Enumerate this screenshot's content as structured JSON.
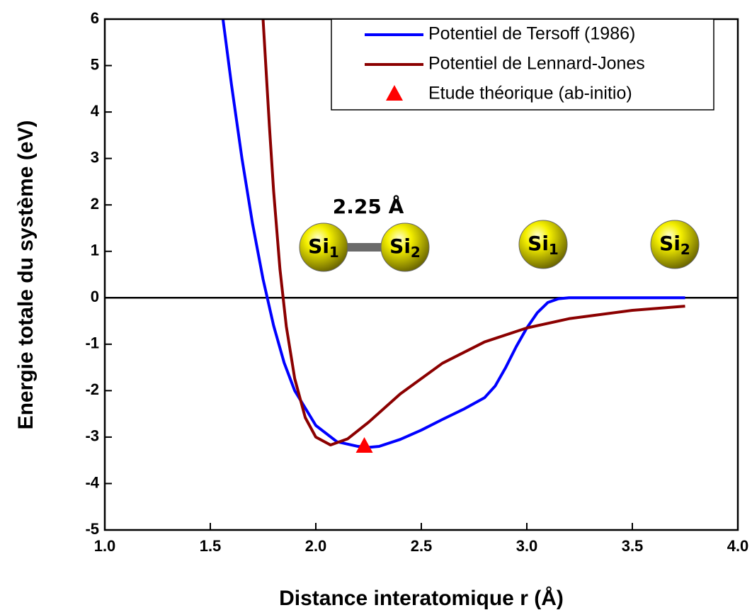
{
  "chart_data": {
    "type": "line",
    "xlabel": "Distance interatomique r (Å)",
    "ylabel": "Energie totale du système (eV)",
    "xlim": [
      1.0,
      4.0
    ],
    "ylim": [
      -5,
      6
    ],
    "xticks": [
      {
        "value": 1.0,
        "label": "1.0"
      },
      {
        "value": 1.5,
        "label": "1.5"
      },
      {
        "value": 2.0,
        "label": "2.0"
      },
      {
        "value": 2.5,
        "label": "2.5"
      },
      {
        "value": 3.0,
        "label": "3.0"
      },
      {
        "value": 3.5,
        "label": "3.5"
      },
      {
        "value": 4.0,
        "label": "4.0"
      }
    ],
    "yticks": [
      -5,
      -4,
      -3,
      -2,
      -1,
      0,
      1,
      2,
      3,
      4,
      5,
      6
    ],
    "legend": "upper right",
    "series": [
      {
        "name": "Potentiel de Tersoff (1986)",
        "type": "line",
        "color": "#0000ff",
        "x": [
          1.56,
          1.6,
          1.65,
          1.7,
          1.75,
          1.8,
          1.85,
          1.9,
          2.0,
          2.1,
          2.2,
          2.25,
          2.3,
          2.4,
          2.5,
          2.6,
          2.7,
          2.8,
          2.85,
          2.9,
          2.95,
          3.0,
          3.05,
          3.1,
          3.15,
          3.2,
          3.3,
          3.5,
          3.75
        ],
        "values": [
          6,
          4.6,
          3.0,
          1.6,
          0.4,
          -0.6,
          -1.4,
          -2.0,
          -2.75,
          -3.1,
          -3.2,
          -3.22,
          -3.2,
          -3.05,
          -2.85,
          -2.62,
          -2.4,
          -2.15,
          -1.9,
          -1.5,
          -1.05,
          -0.65,
          -0.32,
          -0.1,
          -0.02,
          0,
          0,
          0,
          0
        ]
      },
      {
        "name": "Potentiel de Lennard-Jones",
        "type": "line",
        "color": "#8b0000",
        "x": [
          1.75,
          1.78,
          1.8,
          1.83,
          1.86,
          1.9,
          1.95,
          2.0,
          2.07,
          2.15,
          2.25,
          2.4,
          2.6,
          2.8,
          3.0,
          3.2,
          3.5,
          3.75
        ],
        "values": [
          6,
          3.7,
          2.3,
          0.62,
          -0.61,
          -1.74,
          -2.58,
          -3.0,
          -3.17,
          -3.04,
          -2.68,
          -2.07,
          -1.41,
          -0.95,
          -0.65,
          -0.45,
          -0.27,
          -0.18
        ]
      },
      {
        "name": "Etude théorique (ab-initio)",
        "type": "scatter",
        "marker": "triangle",
        "color": "#ff0000",
        "x": [
          2.23
        ],
        "values": [
          -3.2
        ]
      }
    ],
    "annotations": {
      "bond_length": "2.25 Å",
      "bonded_atoms": [
        {
          "symbol": "Si",
          "index": "1"
        },
        {
          "symbol": "Si",
          "index": "2"
        }
      ],
      "separated_atoms": [
        {
          "symbol": "Si",
          "index": "1"
        },
        {
          "symbol": "Si",
          "index": "2"
        }
      ]
    }
  }
}
